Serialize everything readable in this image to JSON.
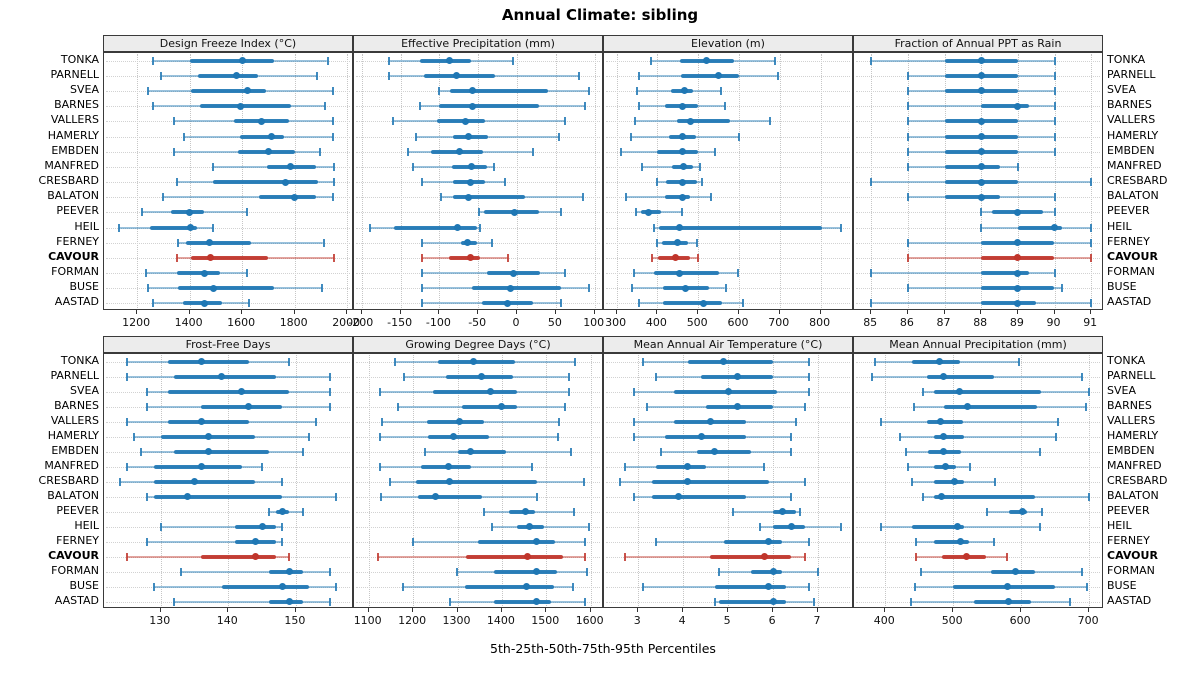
{
  "title": "Annual Climate: sibling",
  "caption": "5th-25th-50th-75th-95th Percentiles",
  "colors": {
    "series": "#1f77b4",
    "highlight": "#c0352b",
    "grid": "#c6c6c6",
    "strip_bg": "#ececec",
    "border": "#3a3a3a"
  },
  "chart_data": {
    "type": "dotplot-interval-trellis",
    "percentiles": [
      5,
      25,
      50,
      75,
      95
    ],
    "highlighted_station": "CAVOUR",
    "panel_layout": {
      "rows": 2,
      "cols": 4
    },
    "legend": "none",
    "grid": "dotted",
    "stations": [
      "TONKA",
      "PARNELL",
      "SVEA",
      "BARNES",
      "VALLERS",
      "HAMERLY",
      "EMBDEN",
      "MANFRED",
      "CRESBARD",
      "BALATON",
      "PEEVER",
      "HEIL",
      "FERNEY",
      "CAVOUR",
      "FORMAN",
      "BUSE",
      "AASTAD"
    ],
    "panels": [
      {
        "title": "Design Freeze Index (°C)",
        "slug": "design-freeze-index",
        "row": 0,
        "col": 0,
        "domain": [
          1074,
          2026
        ],
        "ticks": [
          1200,
          1400,
          1600,
          1800,
          2000
        ],
        "values": [
          [
            1260,
            1400,
            1600,
            1720,
            1925
          ],
          [
            1290,
            1430,
            1580,
            1660,
            1885
          ],
          [
            1240,
            1405,
            1620,
            1690,
            1945
          ],
          [
            1260,
            1440,
            1595,
            1785,
            1915
          ],
          [
            1340,
            1570,
            1675,
            1780,
            1945
          ],
          [
            1380,
            1590,
            1710,
            1760,
            1945
          ],
          [
            1340,
            1585,
            1700,
            1800,
            1895
          ],
          [
            1490,
            1695,
            1785,
            1880,
            1950
          ],
          [
            1350,
            1490,
            1765,
            1890,
            1950
          ],
          [
            1300,
            1665,
            1800,
            1880,
            1945
          ],
          [
            1220,
            1330,
            1400,
            1455,
            1620
          ],
          [
            1130,
            1250,
            1405,
            1430,
            1490
          ],
          [
            1355,
            1385,
            1477,
            1633,
            1910
          ],
          [
            1350,
            1405,
            1480,
            1700,
            1950
          ],
          [
            1235,
            1350,
            1455,
            1515,
            1620
          ],
          [
            1240,
            1355,
            1490,
            1720,
            1905
          ],
          [
            1260,
            1375,
            1455,
            1525,
            1625
          ]
        ]
      },
      {
        "title": "Effective Precipitation (mm)",
        "slug": "effective-precipitation",
        "row": 0,
        "col": 1,
        "domain": [
          -210,
          112
        ],
        "ticks": [
          -200,
          -150,
          -100,
          -50,
          0,
          50,
          100
        ],
        "values": [
          [
            -165,
            -125,
            -87,
            -60,
            -5
          ],
          [
            -165,
            -120,
            -78,
            -28,
            80
          ],
          [
            -100,
            -86,
            -57,
            40,
            93
          ],
          [
            -125,
            -100,
            -57,
            28,
            88
          ],
          [
            -160,
            -103,
            -66,
            -41,
            62
          ],
          [
            -130,
            -82,
            -62,
            -37,
            54
          ],
          [
            -140,
            -111,
            -74,
            -44,
            20
          ],
          [
            -134,
            -84,
            -59,
            -39,
            -30
          ],
          [
            -122,
            -82,
            -60,
            -41,
            -15
          ],
          [
            -98,
            -82,
            -62,
            10,
            85
          ],
          [
            -49,
            -43,
            -3,
            28,
            56
          ],
          [
            -190,
            -158,
            -77,
            -52,
            -48
          ],
          [
            -122,
            -72,
            -64,
            -51,
            -32
          ],
          [
            -122,
            -88,
            -60,
            -48,
            -12
          ],
          [
            -122,
            -39,
            -5,
            30,
            62
          ],
          [
            -122,
            -58,
            -9,
            56,
            92
          ],
          [
            -123,
            -45,
            -12,
            21,
            56
          ]
        ]
      },
      {
        "title": "Elevation (m)",
        "slug": "elevation",
        "row": 0,
        "col": 2,
        "domain": [
          269,
          882
        ],
        "ticks": [
          300,
          400,
          500,
          600,
          700,
          800
        ],
        "values": [
          [
            383,
            455,
            520,
            587,
            687
          ],
          [
            355,
            457,
            549,
            601,
            695
          ],
          [
            350,
            432,
            467,
            488,
            556
          ],
          [
            355,
            418,
            462,
            500,
            565
          ],
          [
            345,
            447,
            480,
            578,
            677
          ],
          [
            334,
            428,
            462,
            496,
            601
          ],
          [
            311,
            400,
            462,
            500,
            542
          ],
          [
            361,
            436,
            465,
            488,
            504
          ],
          [
            400,
            422,
            461,
            496,
            508
          ],
          [
            322,
            418,
            461,
            481,
            532
          ],
          [
            347,
            360,
            377,
            408,
            461
          ],
          [
            391,
            403,
            453,
            804,
            849
          ],
          [
            398,
            410,
            450,
            475,
            496
          ],
          [
            387,
            402,
            444,
            480,
            500
          ],
          [
            342,
            391,
            453,
            551,
            597
          ],
          [
            338,
            414,
            469,
            526,
            567
          ],
          [
            355,
            414,
            514,
            559,
            610
          ]
        ]
      },
      {
        "title": "Fraction of Annual PPT as Rain",
        "slug": "fraction-annual-ppt-as-rain",
        "row": 0,
        "col": 3,
        "domain": [
          84.53,
          91.35
        ],
        "ticks": [
          85,
          86,
          87,
          88,
          89,
          90,
          91
        ],
        "values": [
          [
            85,
            87,
            88,
            89,
            90
          ],
          [
            86,
            87,
            88,
            89,
            90
          ],
          [
            86,
            87,
            88,
            89,
            90
          ],
          [
            86,
            88,
            89,
            89.3,
            90
          ],
          [
            86,
            87,
            88,
            89,
            90
          ],
          [
            86,
            87,
            88,
            89,
            90
          ],
          [
            86,
            87,
            88,
            89,
            90
          ],
          [
            86,
            87,
            88,
            88.5,
            89
          ],
          [
            85,
            87,
            88,
            89,
            91
          ],
          [
            86,
            87,
            88,
            88.5,
            90
          ],
          [
            88,
            88.3,
            89,
            89.7,
            90
          ],
          [
            88,
            89,
            90,
            90.2,
            91
          ],
          [
            86,
            88,
            89,
            90,
            91
          ],
          [
            86,
            88,
            89,
            90,
            91
          ],
          [
            85,
            88,
            89,
            89.3,
            90
          ],
          [
            86,
            88,
            89,
            90,
            90.2
          ],
          [
            85,
            88,
            89,
            89.5,
            91
          ]
        ]
      },
      {
        "title": "Frost-Free Days",
        "slug": "frost-free-days",
        "row": 1,
        "col": 0,
        "domain": [
          121.6,
          158.6
        ],
        "ticks": [
          130,
          140,
          150
        ],
        "values": [
          [
            125,
            131,
            136,
            143,
            149
          ],
          [
            125,
            132,
            139,
            147,
            155
          ],
          [
            128,
            131,
            142,
            149,
            155
          ],
          [
            128,
            136,
            143,
            148,
            155
          ],
          [
            125,
            131,
            136,
            143,
            153
          ],
          [
            126,
            130,
            137,
            144,
            152
          ],
          [
            127,
            132,
            137,
            146,
            151
          ],
          [
            125,
            129,
            136,
            142,
            145
          ],
          [
            124,
            129,
            135,
            144,
            148
          ],
          [
            128,
            129,
            134,
            148,
            156
          ],
          [
            146,
            147,
            148,
            149,
            151
          ],
          [
            130,
            141,
            145,
            147,
            148
          ],
          [
            128,
            141,
            144,
            147,
            148
          ],
          [
            125,
            136,
            144,
            147,
            149
          ],
          [
            133,
            146,
            149,
            151,
            155
          ],
          [
            129,
            139,
            148,
            152,
            156
          ],
          [
            132,
            146,
            149,
            151,
            155
          ]
        ]
      },
      {
        "title": "Growing Degree Days (°C)",
        "slug": "growing-degree-days",
        "row": 1,
        "col": 1,
        "domain": [
          1067,
          1630
        ],
        "ticks": [
          1100,
          1200,
          1300,
          1400,
          1500,
          1600
        ],
        "values": [
          [
            1160,
            1255,
            1335,
            1430,
            1565
          ],
          [
            1180,
            1275,
            1355,
            1425,
            1550
          ],
          [
            1125,
            1245,
            1375,
            1435,
            1550
          ],
          [
            1165,
            1310,
            1400,
            1435,
            1543
          ],
          [
            1130,
            1232,
            1304,
            1360,
            1528
          ],
          [
            1126,
            1234,
            1292,
            1371,
            1526
          ],
          [
            1227,
            1300,
            1330,
            1409,
            1556
          ],
          [
            1126,
            1217,
            1279,
            1330,
            1467
          ],
          [
            1147,
            1206,
            1281,
            1480,
            1584
          ],
          [
            1127,
            1212,
            1250,
            1356,
            1478
          ],
          [
            1360,
            1417,
            1452,
            1475,
            1562
          ],
          [
            1377,
            1435,
            1462,
            1495,
            1595
          ],
          [
            1200,
            1347,
            1479,
            1520,
            1588
          ],
          [
            1120,
            1320,
            1458,
            1537,
            1587
          ],
          [
            1298,
            1383,
            1477,
            1524,
            1592
          ],
          [
            1178,
            1317,
            1456,
            1518,
            1561
          ],
          [
            1283,
            1383,
            1477,
            1510,
            1587
          ]
        ]
      },
      {
        "title": "Mean Annual Air Temperature (°C)",
        "slug": "mean-annual-air-temperature",
        "row": 1,
        "col": 2,
        "domain": [
          2.24,
          7.8
        ],
        "ticks": [
          3,
          4,
          5,
          6,
          7
        ],
        "values": [
          [
            3.1,
            4.1,
            4.9,
            6.0,
            6.8
          ],
          [
            3.4,
            4.4,
            5.2,
            6.0,
            6.8
          ],
          [
            2.9,
            3.8,
            5.0,
            6.1,
            6.8
          ],
          [
            3.2,
            4.5,
            5.2,
            6.0,
            6.7
          ],
          [
            2.9,
            3.8,
            4.6,
            5.4,
            6.5
          ],
          [
            2.9,
            3.6,
            4.4,
            5.4,
            6.4
          ],
          [
            3.5,
            4.3,
            4.7,
            5.5,
            6.4
          ],
          [
            2.7,
            3.4,
            4.1,
            4.5,
            5.8
          ],
          [
            2.6,
            3.3,
            4.1,
            5.9,
            6.7
          ],
          [
            2.9,
            3.3,
            3.9,
            5.4,
            6.4
          ],
          [
            5.1,
            6.0,
            6.2,
            6.5,
            6.6
          ],
          [
            5.7,
            6.0,
            6.4,
            6.7,
            7.5
          ],
          [
            3.4,
            4.9,
            5.9,
            6.2,
            6.8
          ],
          [
            2.7,
            4.6,
            5.8,
            6.4,
            6.7
          ],
          [
            4.8,
            5.5,
            6.0,
            6.2,
            7.0
          ],
          [
            3.1,
            4.7,
            5.9,
            6.3,
            6.8
          ],
          [
            4.7,
            4.8,
            6.0,
            6.3,
            6.9
          ]
        ]
      },
      {
        "title": "Mean Annual Precipitation (mm)",
        "slug": "mean-annual-precipitation",
        "row": 1,
        "col": 3,
        "domain": [
          354,
          722
        ],
        "ticks": [
          400,
          500,
          600,
          700
        ],
        "values": [
          [
            385,
            440,
            480,
            510,
            597
          ],
          [
            380,
            462,
            486,
            560,
            690
          ],
          [
            455,
            472,
            509,
            629,
            700
          ],
          [
            442,
            486,
            521,
            623,
            695
          ],
          [
            394,
            462,
            481,
            514,
            654
          ],
          [
            422,
            472,
            486,
            516,
            651
          ],
          [
            430,
            463,
            486,
            511,
            628
          ],
          [
            434,
            472,
            488,
            504,
            524
          ],
          [
            440,
            472,
            502,
            516,
            562
          ],
          [
            455,
            471,
            483,
            620,
            700
          ],
          [
            550,
            582,
            602,
            609,
            631
          ],
          [
            393,
            439,
            507,
            516,
            628
          ],
          [
            445,
            472,
            510,
            523,
            560
          ],
          [
            445,
            483,
            519,
            549,
            579
          ],
          [
            453,
            555,
            592,
            620,
            690
          ],
          [
            443,
            500,
            580,
            650,
            697
          ],
          [
            438,
            530,
            581,
            615,
            672
          ]
        ]
      }
    ]
  }
}
